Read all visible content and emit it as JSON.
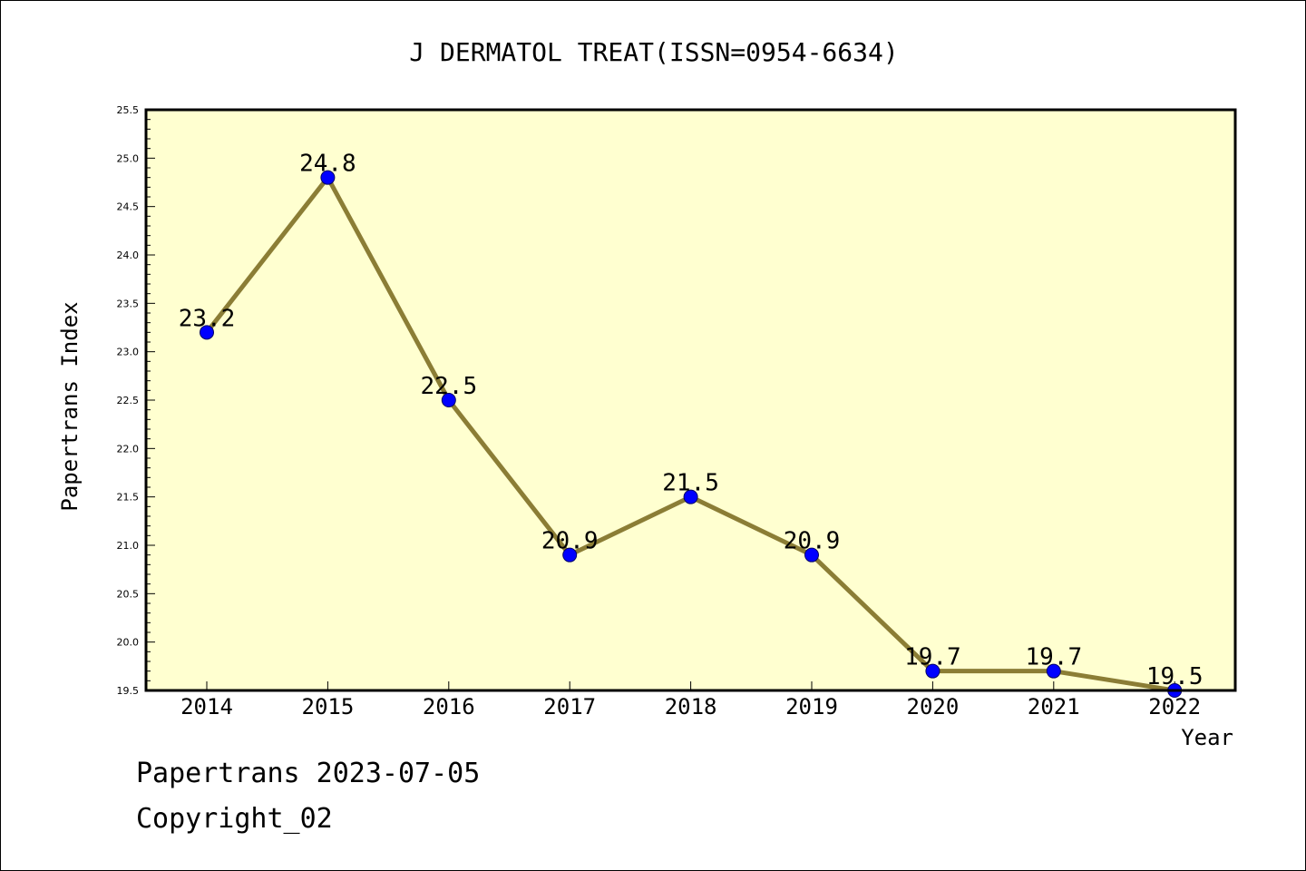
{
  "chart_data": {
    "type": "line",
    "title": "J DERMATOL TREAT(ISSN=0954-6634)",
    "xlabel": "Year",
    "ylabel": "Papertrans Index",
    "categories": [
      "2014",
      "2015",
      "2016",
      "2017",
      "2018",
      "2019",
      "2020",
      "2021",
      "2022"
    ],
    "series": [
      {
        "values": [
          23.2,
          24.8,
          22.5,
          20.9,
          21.5,
          20.9,
          19.7,
          19.7,
          19.5
        ],
        "labels": [
          "23.2",
          "24.8",
          "22.5",
          "20.9",
          "21.5",
          "20.9",
          "19.7",
          "19.7",
          "19.5"
        ]
      }
    ],
    "ylim": [
      19.5,
      25.5
    ],
    "yticks": [
      "19.5",
      "20.0",
      "20.5",
      "21.0",
      "21.5",
      "22.0",
      "22.5",
      "23.0",
      "23.5",
      "24.0",
      "24.5",
      "25.0",
      "25.5"
    ],
    "ytick_values": [
      19.5,
      20.0,
      20.5,
      21.0,
      21.5,
      22.0,
      22.5,
      23.0,
      23.5,
      24.0,
      24.5,
      25.0,
      25.5
    ],
    "grid": false,
    "colors": {
      "plot_background": "#ffffd0",
      "line": "#8b7d35",
      "marker": "#0000ff",
      "axis": "#000000"
    }
  },
  "footer": {
    "date_line": "Papertrans 2023-07-05",
    "copyright": "Copyright_02"
  }
}
